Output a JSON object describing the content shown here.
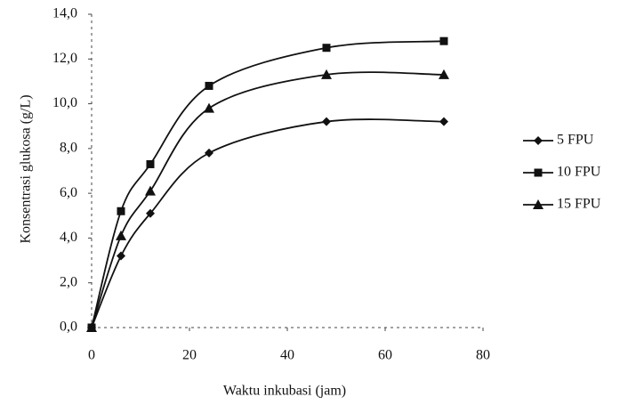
{
  "chart_data": {
    "type": "line",
    "x_label": "Waktu inkubasi (jam)",
    "y_label": "Konsentrasi glukosa (g/L)",
    "x": [
      0,
      6,
      12,
      24,
      48,
      72
    ],
    "series": [
      {
        "name": "5 FPU",
        "color": "#111111",
        "marker": "diamond",
        "values": [
          0,
          3.2,
          5.1,
          7.8,
          9.2,
          9.2
        ]
      },
      {
        "name": "10 FPU",
        "color": "#111111",
        "marker": "square",
        "values": [
          0,
          5.2,
          7.3,
          10.8,
          12.5,
          12.8
        ]
      },
      {
        "name": "15 FPU",
        "color": "#111111",
        "marker": "triangle",
        "values": [
          0,
          4.1,
          6.1,
          9.8,
          11.3,
          11.3
        ]
      }
    ],
    "xlim": [
      0,
      80
    ],
    "xticks": [
      0,
      20,
      40,
      60,
      80
    ],
    "ylim": [
      0,
      14
    ],
    "yticks": [
      {
        "value": 0,
        "label": "0,0"
      },
      {
        "value": 2,
        "label": "2,0"
      },
      {
        "value": 4,
        "label": "4,0"
      },
      {
        "value": 6,
        "label": "6,0"
      },
      {
        "value": 8,
        "label": "8,0"
      },
      {
        "value": 10,
        "label": "10,0"
      },
      {
        "value": 12,
        "label": "12,0"
      },
      {
        "value": 14,
        "label": "14,0"
      }
    ],
    "legend": "right"
  }
}
